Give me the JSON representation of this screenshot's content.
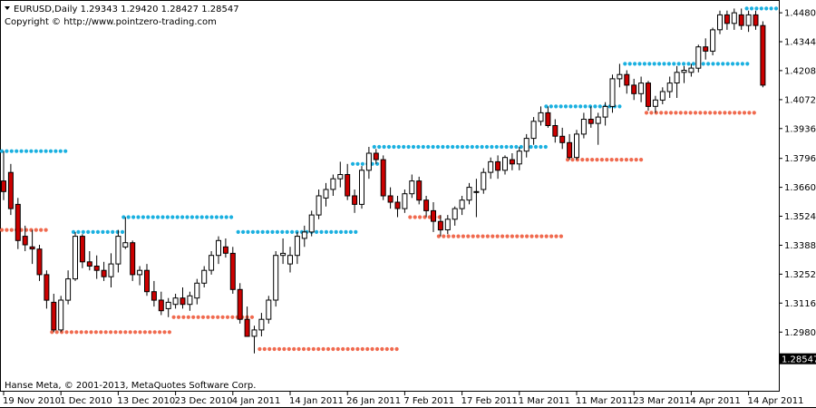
{
  "header": {
    "symbol_line": "EURUSD,Daily  1.29343 1.29420 1.28427 1.28547",
    "copyright": "Copyright © http://www.pointzero-trading.com"
  },
  "footer": {
    "credit": "Hanse Meta, © 2001-2013, MetaQuotes Software Corp."
  },
  "price_tag": "1.28547",
  "colors": {
    "bull_body": "#ffffff",
    "bear_body": "#cc0000",
    "candle_outline": "#000000",
    "resistance_dots": "#1ab0e0",
    "support_dots": "#f06a4f",
    "price_tag_bg": "#000000",
    "price_tag_text": "#ffffff"
  },
  "chart_data": {
    "type": "candlestick",
    "y_ticks": [
      "1.44800",
      "1.43440",
      "1.42080",
      "1.40720",
      "1.39360",
      "1.37960",
      "1.36600",
      "1.35240",
      "1.33880",
      "1.32520",
      "1.31160",
      "1.29800"
    ],
    "ylim": [
      1.27,
      1.454
    ],
    "x_ticks": [
      {
        "label": "19 Nov 2010",
        "index": 0
      },
      {
        "label": "1 Dec 2010",
        "index": 8
      },
      {
        "label": "13 Dec 2010",
        "index": 16
      },
      {
        "label": "23 Dec 2010",
        "index": 24
      },
      {
        "label": "4 Jan 2011",
        "index": 32
      },
      {
        "label": "14 Jan 2011",
        "index": 40
      },
      {
        "label": "26 Jan 2011",
        "index": 48
      },
      {
        "label": "7 Feb 2011",
        "index": 56
      },
      {
        "label": "17 Feb 2011",
        "index": 64
      },
      {
        "label": "1 Mar 2011",
        "index": 72
      },
      {
        "label": "11 Mar 2011",
        "index": 80
      },
      {
        "label": "23 Mar 2011",
        "index": 88
      },
      {
        "label": "4 Apr 2011",
        "index": 96
      },
      {
        "label": "14 Apr 2011",
        "index": 104
      }
    ],
    "candles": [
      [
        1.369,
        1.383,
        1.36,
        1.364
      ],
      [
        1.373,
        1.377,
        1.353,
        1.356
      ],
      [
        1.358,
        1.361,
        1.337,
        1.341
      ],
      [
        1.343,
        1.348,
        1.336,
        1.339
      ],
      [
        1.338,
        1.346,
        1.33,
        1.337
      ],
      [
        1.337,
        1.339,
        1.322,
        1.325
      ],
      [
        1.325,
        1.327,
        1.309,
        1.313
      ],
      [
        1.312,
        1.316,
        1.298,
        1.299
      ],
      [
        1.299,
        1.315,
        1.298,
        1.313
      ],
      [
        1.313,
        1.327,
        1.311,
        1.323
      ],
      [
        1.323,
        1.345,
        1.322,
        1.343
      ],
      [
        1.343,
        1.344,
        1.328,
        1.331
      ],
      [
        1.331,
        1.336,
        1.327,
        1.329
      ],
      [
        1.329,
        1.334,
        1.323,
        1.327
      ],
      [
        1.327,
        1.331,
        1.322,
        1.324
      ],
      [
        1.324,
        1.335,
        1.319,
        1.33
      ],
      [
        1.33,
        1.346,
        1.326,
        1.343
      ],
      [
        1.338,
        1.352,
        1.337,
        1.34
      ],
      [
        1.34,
        1.341,
        1.322,
        1.325
      ],
      [
        1.325,
        1.329,
        1.32,
        1.327
      ],
      [
        1.327,
        1.33,
        1.315,
        1.317
      ],
      [
        1.317,
        1.322,
        1.31,
        1.313
      ],
      [
        1.313,
        1.317,
        1.306,
        1.308
      ],
      [
        1.309,
        1.314,
        1.305,
        1.312
      ],
      [
        1.311,
        1.316,
        1.309,
        1.314
      ],
      [
        1.314,
        1.319,
        1.309,
        1.311
      ],
      [
        1.311,
        1.317,
        1.308,
        1.315
      ],
      [
        1.314,
        1.323,
        1.311,
        1.321
      ],
      [
        1.321,
        1.329,
        1.319,
        1.327
      ],
      [
        1.327,
        1.336,
        1.325,
        1.334
      ],
      [
        1.334,
        1.343,
        1.33,
        1.341
      ],
      [
        1.338,
        1.342,
        1.333,
        1.335
      ],
      [
        1.335,
        1.338,
        1.316,
        1.318
      ],
      [
        1.318,
        1.321,
        1.302,
        1.304
      ],
      [
        1.304,
        1.31,
        1.296,
        1.296
      ],
      [
        1.296,
        1.301,
        1.288,
        1.299
      ],
      [
        1.299,
        1.307,
        1.296,
        1.304
      ],
      [
        1.304,
        1.315,
        1.302,
        1.313
      ],
      [
        1.313,
        1.336,
        1.31,
        1.334
      ],
      [
        1.334,
        1.342,
        1.33,
        1.335
      ],
      [
        1.33,
        1.338,
        1.326,
        1.334
      ],
      [
        1.334,
        1.345,
        1.33,
        1.343
      ],
      [
        1.342,
        1.348,
        1.338,
        1.345
      ],
      [
        1.345,
        1.355,
        1.343,
        1.353
      ],
      [
        1.353,
        1.365,
        1.351,
        1.362
      ],
      [
        1.361,
        1.368,
        1.357,
        1.365
      ],
      [
        1.365,
        1.372,
        1.362,
        1.37
      ],
      [
        1.37,
        1.378,
        1.366,
        1.372
      ],
      [
        1.372,
        1.377,
        1.36,
        1.362
      ],
      [
        1.362,
        1.365,
        1.354,
        1.358
      ],
      [
        1.358,
        1.376,
        1.356,
        1.374
      ],
      [
        1.374,
        1.385,
        1.37,
        1.382
      ],
      [
        1.382,
        1.384,
        1.377,
        1.379
      ],
      [
        1.379,
        1.381,
        1.36,
        1.362
      ],
      [
        1.362,
        1.366,
        1.356,
        1.359
      ],
      [
        1.359,
        1.362,
        1.352,
        1.356
      ],
      [
        1.356,
        1.365,
        1.354,
        1.363
      ],
      [
        1.363,
        1.372,
        1.361,
        1.369
      ],
      [
        1.369,
        1.371,
        1.358,
        1.36
      ],
      [
        1.36,
        1.362,
        1.352,
        1.355
      ],
      [
        1.355,
        1.359,
        1.345,
        1.35
      ],
      [
        1.35,
        1.353,
        1.343,
        1.346
      ],
      [
        1.346,
        1.353,
        1.344,
        1.351
      ],
      [
        1.351,
        1.357,
        1.348,
        1.356
      ],
      [
        1.356,
        1.362,
        1.353,
        1.36
      ],
      [
        1.36,
        1.368,
        1.358,
        1.366
      ],
      [
        1.364,
        1.37,
        1.352,
        1.364
      ],
      [
        1.365,
        1.375,
        1.363,
        1.373
      ],
      [
        1.373,
        1.38,
        1.37,
        1.378
      ],
      [
        1.378,
        1.381,
        1.37,
        1.374
      ],
      [
        1.374,
        1.381,
        1.372,
        1.38
      ],
      [
        1.379,
        1.382,
        1.374,
        1.377
      ],
      [
        1.377,
        1.385,
        1.374,
        1.383
      ],
      [
        1.383,
        1.391,
        1.38,
        1.389
      ],
      [
        1.389,
        1.399,
        1.386,
        1.397
      ],
      [
        1.397,
        1.404,
        1.395,
        1.401
      ],
      [
        1.401,
        1.404,
        1.394,
        1.395
      ],
      [
        1.395,
        1.398,
        1.387,
        1.39
      ],
      [
        1.39,
        1.394,
        1.384,
        1.387
      ],
      [
        1.387,
        1.391,
        1.379,
        1.38
      ],
      [
        1.38,
        1.393,
        1.379,
        1.391
      ],
      [
        1.391,
        1.401,
        1.389,
        1.398
      ],
      [
        1.398,
        1.404,
        1.394,
        1.396
      ],
      [
        1.396,
        1.401,
        1.386,
        1.399
      ],
      [
        1.399,
        1.406,
        1.395,
        1.404
      ],
      [
        1.404,
        1.419,
        1.401,
        1.417
      ],
      [
        1.417,
        1.424,
        1.413,
        1.419
      ],
      [
        1.419,
        1.421,
        1.41,
        1.414
      ],
      [
        1.414,
        1.417,
        1.407,
        1.41
      ],
      [
        1.41,
        1.418,
        1.406,
        1.415
      ],
      [
        1.415,
        1.416,
        1.402,
        1.404
      ],
      [
        1.404,
        1.409,
        1.401,
        1.407
      ],
      [
        1.407,
        1.413,
        1.405,
        1.411
      ],
      [
        1.411,
        1.418,
        1.408,
        1.415
      ],
      [
        1.415,
        1.423,
        1.408,
        1.42
      ],
      [
        1.42,
        1.423,
        1.415,
        1.421
      ],
      [
        1.42,
        1.424,
        1.418,
        1.422
      ],
      [
        1.422,
        1.433,
        1.42,
        1.432
      ],
      [
        1.432,
        1.436,
        1.426,
        1.43
      ],
      [
        1.43,
        1.441,
        1.428,
        1.44
      ],
      [
        1.44,
        1.449,
        1.438,
        1.447
      ],
      [
        1.447,
        1.449,
        1.44,
        1.443
      ],
      [
        1.443,
        1.45,
        1.44,
        1.448
      ],
      [
        1.447,
        1.45,
        1.44,
        1.442
      ],
      [
        1.442,
        1.449,
        1.439,
        1.447
      ],
      [
        1.447,
        1.449,
        1.44,
        1.442
      ],
      [
        1.442,
        1.444,
        1.413,
        1.414
      ]
    ],
    "resistance_segments": [
      {
        "start": 0,
        "end": 9,
        "level": 1.383
      },
      {
        "start": 10,
        "end": 17,
        "level": 1.345
      },
      {
        "start": 17,
        "end": 32,
        "level": 1.352
      },
      {
        "start": 33,
        "end": 49,
        "level": 1.345
      },
      {
        "start": 49,
        "end": 52,
        "level": 1.377
      },
      {
        "start": 52,
        "end": 76,
        "level": 1.385
      },
      {
        "start": 76,
        "end": 86,
        "level": 1.404
      },
      {
        "start": 87,
        "end": 104,
        "level": 1.424
      },
      {
        "start": 104,
        "end": 108,
        "level": 1.45
      }
    ],
    "support_segments": [
      {
        "start": 0,
        "end": 6,
        "level": 1.346
      },
      {
        "start": 7,
        "end": 23,
        "level": 1.298
      },
      {
        "start": 24,
        "end": 35,
        "level": 1.305
      },
      {
        "start": 36,
        "end": 55,
        "level": 1.29
      },
      {
        "start": 57,
        "end": 61,
        "level": 1.352
      },
      {
        "start": 61,
        "end": 78,
        "level": 1.343
      },
      {
        "start": 79,
        "end": 89,
        "level": 1.379
      },
      {
        "start": 90,
        "end": 105,
        "level": 1.401
      }
    ]
  }
}
